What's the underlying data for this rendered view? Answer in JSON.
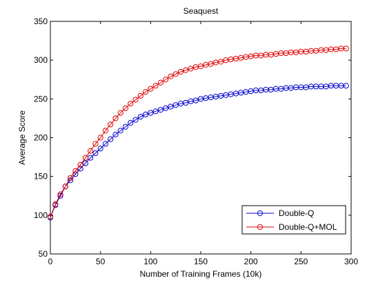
{
  "chart_data": {
    "type": "line",
    "title": "Seaquest",
    "xlabel": "Number of Training Frames (10k)",
    "ylabel": "Average Score",
    "xlim": [
      0,
      300
    ],
    "ylim": [
      50,
      350
    ],
    "xticks": [
      0,
      50,
      100,
      150,
      200,
      250,
      300
    ],
    "yticks": [
      50,
      100,
      150,
      200,
      250,
      300,
      350
    ],
    "grid": false,
    "legend_position": "bottom-right",
    "x": [
      0,
      5,
      10,
      15,
      20,
      25,
      30,
      35,
      40,
      45,
      50,
      55,
      60,
      65,
      70,
      75,
      80,
      85,
      90,
      95,
      100,
      105,
      110,
      115,
      120,
      125,
      130,
      135,
      140,
      145,
      150,
      155,
      160,
      165,
      170,
      175,
      180,
      185,
      190,
      195,
      200,
      205,
      210,
      215,
      220,
      225,
      230,
      235,
      240,
      245,
      250,
      255,
      260,
      265,
      270,
      275,
      280,
      285,
      290,
      295
    ],
    "series": [
      {
        "name": "Double-Q",
        "color": "#0000cc",
        "marker": "circle",
        "values": [
          97,
          113,
          125,
          137,
          145,
          153,
          160,
          167,
          174,
          180,
          186,
          192,
          198,
          204,
          209,
          214,
          219,
          223,
          227,
          230,
          232,
          234,
          236,
          238,
          240,
          242,
          244,
          245,
          247,
          248,
          250,
          251,
          252,
          253,
          254,
          255,
          256,
          257,
          258,
          259,
          260,
          261,
          261,
          262,
          262,
          263,
          263,
          264,
          264,
          265,
          265,
          265,
          266,
          266,
          266,
          266,
          267,
          267,
          267,
          267
        ]
      },
      {
        "name": "Double-Q+MOL",
        "color": "#e00000",
        "marker": "circle",
        "values": [
          98,
          114,
          127,
          137,
          148,
          157,
          165,
          174,
          183,
          192,
          200,
          209,
          217,
          225,
          232,
          238,
          244,
          249,
          254,
          259,
          263,
          267,
          271,
          275,
          279,
          282,
          285,
          287,
          289,
          291,
          292,
          294,
          295,
          297,
          298,
          300,
          301,
          302,
          303,
          304,
          305,
          306,
          306,
          307,
          307,
          308,
          309,
          309,
          310,
          310,
          311,
          311,
          312,
          312,
          313,
          313,
          314,
          314,
          315,
          315
        ]
      }
    ]
  }
}
